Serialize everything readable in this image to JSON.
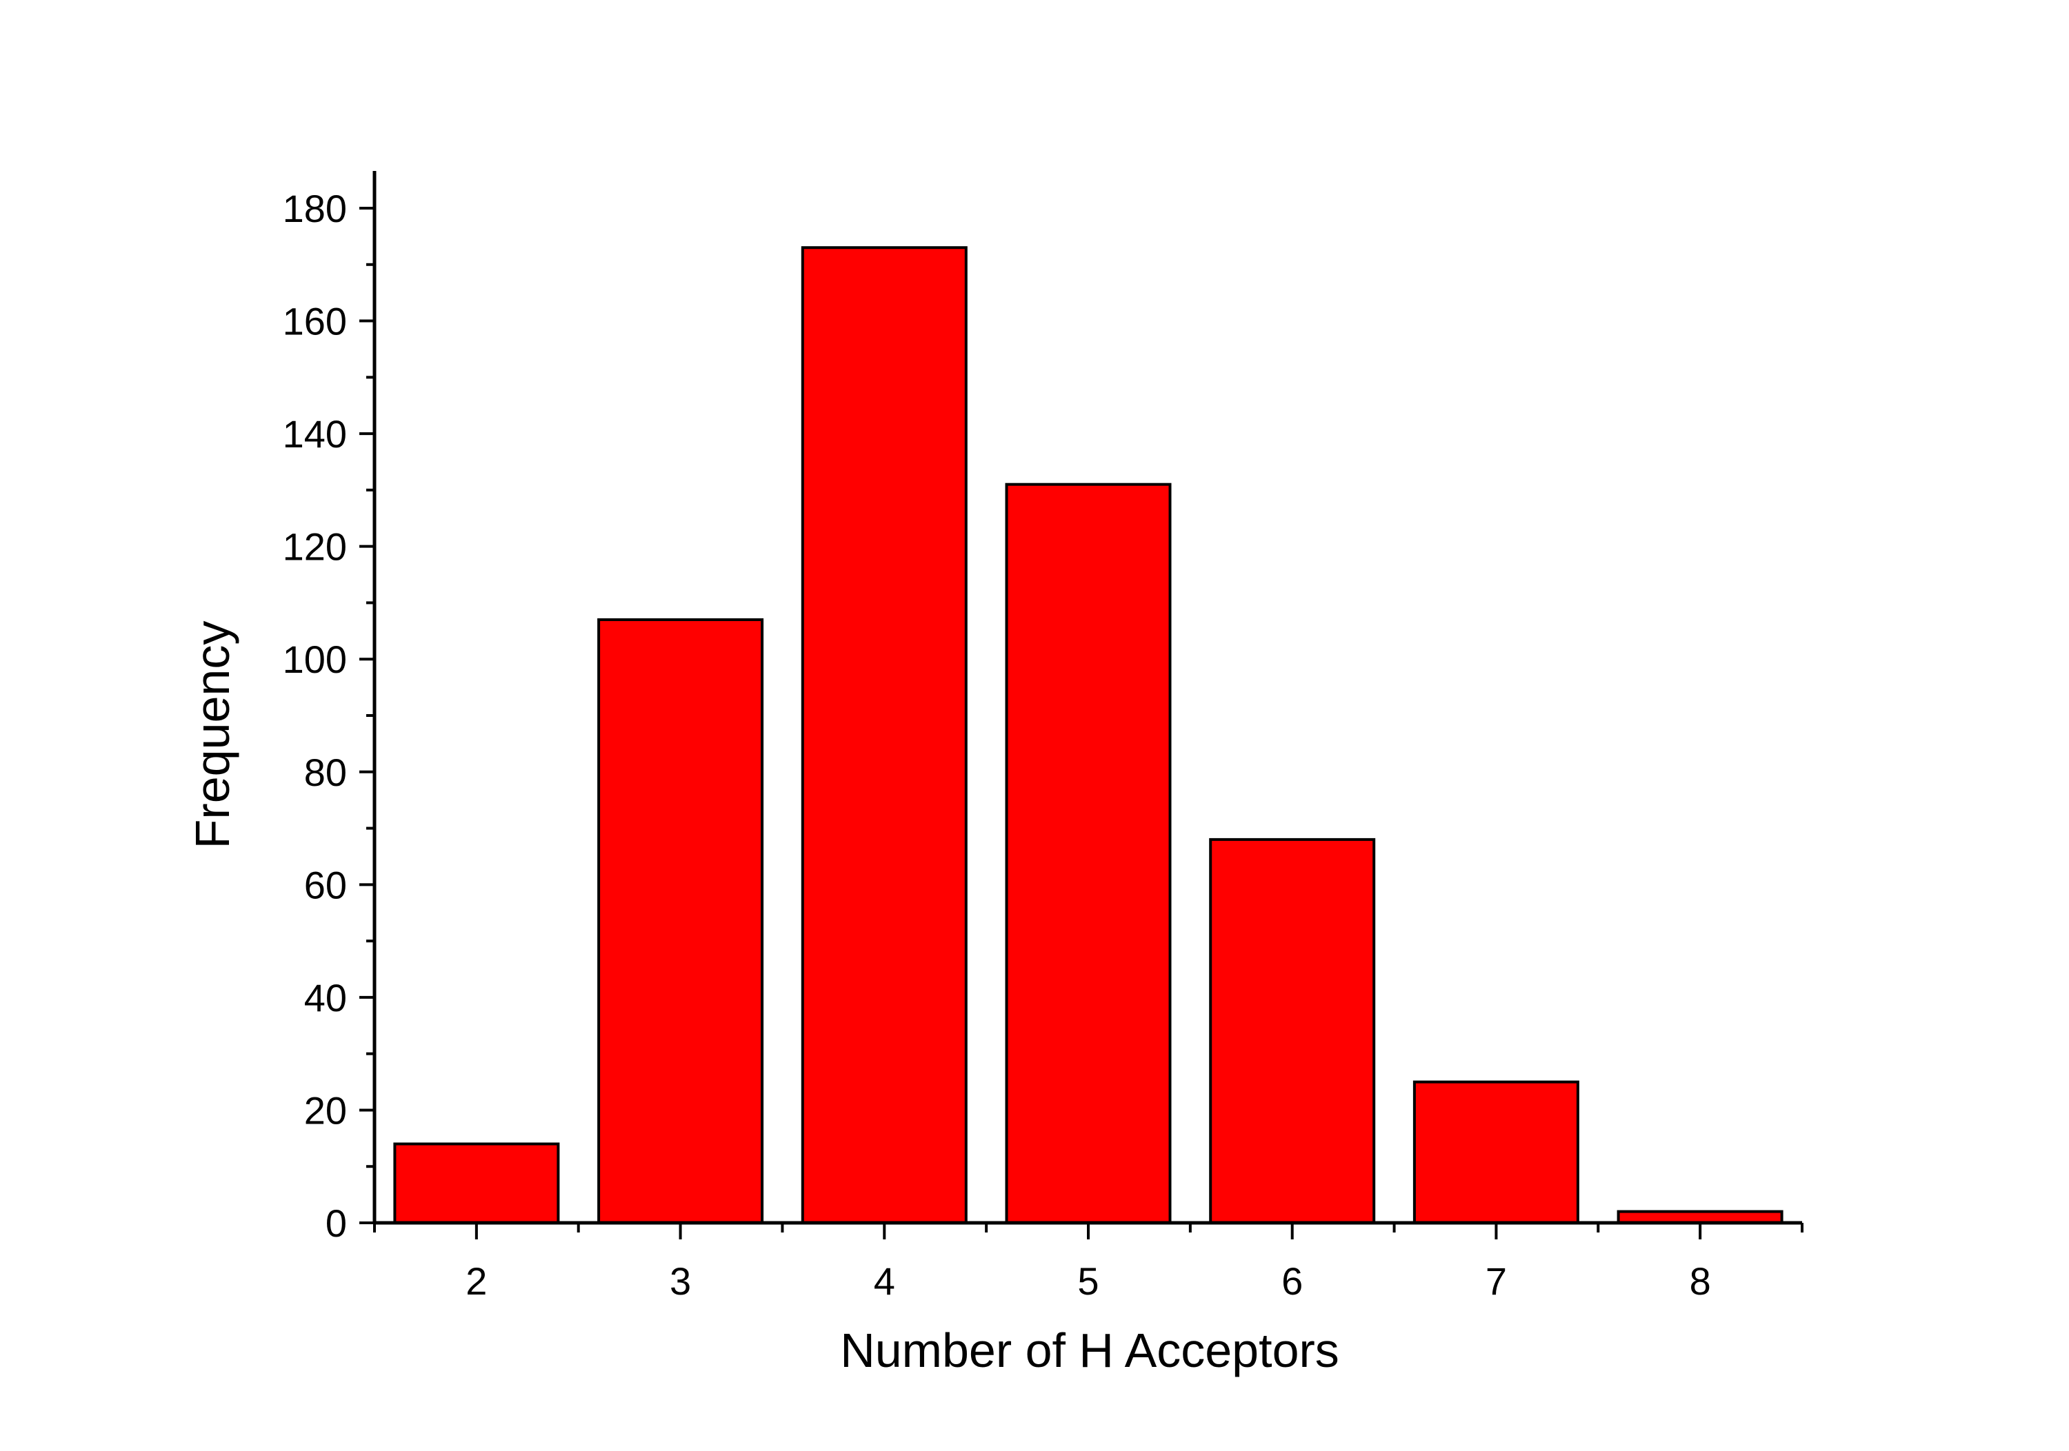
{
  "chart_data": {
    "type": "bar",
    "title": "",
    "xlabel": "Number of H Acceptors",
    "ylabel": "Frequency",
    "categories": [
      "2",
      "3",
      "4",
      "5",
      "6",
      "7",
      "8"
    ],
    "values": [
      14,
      107,
      173,
      131,
      68,
      25,
      2
    ],
    "ylim": [
      0,
      187
    ],
    "yticks": [
      "0",
      "20",
      "40",
      "60",
      "80",
      "100",
      "120",
      "140",
      "160",
      "180"
    ],
    "ytick_values": [
      0,
      20,
      40,
      60,
      80,
      100,
      120,
      140,
      160,
      180
    ],
    "yminor_step": 10,
    "grid": false,
    "legend": "none",
    "colors": {
      "bar_fill": "#ff0000",
      "bar_edge": "#000000",
      "axis": "#000000"
    }
  }
}
